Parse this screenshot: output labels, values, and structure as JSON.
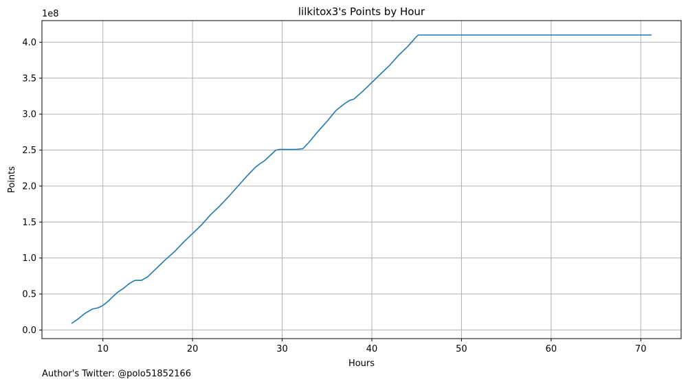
{
  "chart_data": {
    "type": "line",
    "title": "lilkitox3's Points by Hour",
    "xlabel": "Hours",
    "ylabel": "Points",
    "y_offset_label": "1e8",
    "grid": true,
    "xlim": [
      3.2,
      74.5
    ],
    "ylim": [
      -0.12,
      4.3
    ],
    "x_ticks": [
      10,
      20,
      30,
      40,
      50,
      60,
      70
    ],
    "x_tick_labels": [
      "10",
      "20",
      "30",
      "40",
      "50",
      "60",
      "70"
    ],
    "y_ticks": [
      0,
      0.5,
      1.0,
      1.5,
      2.0,
      2.5,
      3.0,
      3.5,
      4.0
    ],
    "y_tick_labels": [
      "0.0",
      "0.5",
      "1.0",
      "1.5",
      "2.0",
      "2.5",
      "3.0",
      "3.5",
      "4.0"
    ],
    "series": [
      {
        "color": "#1f77b4",
        "x": [
          6.5,
          7.2,
          8.0,
          8.8,
          9.5,
          10.0,
          10.6,
          11.0,
          11.6,
          12.3,
          13.0,
          13.6,
          14.3,
          15.0,
          16.0,
          17.0,
          18.0,
          19.0,
          20.0,
          21.0,
          22.0,
          23.0,
          24.0,
          25.0,
          26.0,
          27.0,
          27.5,
          28.0,
          28.7,
          29.3,
          29.7,
          30.5,
          31.5,
          32.3,
          33.0,
          34.0,
          35.0,
          36.0,
          37.0,
          37.5,
          38.0,
          39.0,
          40.0,
          41.0,
          42.0,
          43.0,
          44.0,
          45.0,
          45.2,
          50.0,
          60.0,
          71.2
        ],
        "y": [
          0.09,
          0.15,
          0.23,
          0.29,
          0.31,
          0.34,
          0.4,
          0.45,
          0.52,
          0.58,
          0.65,
          0.69,
          0.69,
          0.74,
          0.86,
          0.98,
          1.09,
          1.22,
          1.34,
          1.46,
          1.6,
          1.72,
          1.85,
          1.99,
          2.13,
          2.26,
          2.31,
          2.35,
          2.43,
          2.5,
          2.51,
          2.51,
          2.51,
          2.52,
          2.61,
          2.76,
          2.9,
          3.05,
          3.15,
          3.19,
          3.21,
          3.32,
          3.44,
          3.56,
          3.68,
          3.82,
          3.94,
          4.08,
          4.1,
          4.1,
          4.1,
          4.1
        ]
      }
    ]
  },
  "footer": {
    "credit": "Author's Twitter: @polo51852166"
  }
}
